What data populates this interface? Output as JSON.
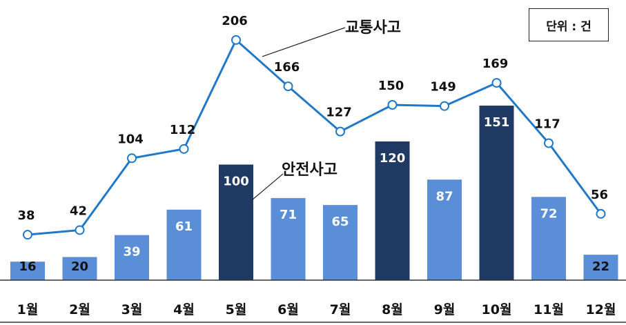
{
  "unit_label": "단위 : 건",
  "chart_data": {
    "type": "bar+line",
    "categories": [
      "1월",
      "2월",
      "3월",
      "4월",
      "5월",
      "6월",
      "7월",
      "8월",
      "9월",
      "10월",
      "11월",
      "12월"
    ],
    "series": [
      {
        "name": "안전사고",
        "type": "bar",
        "values": [
          16,
          20,
          39,
          61,
          100,
          71,
          65,
          120,
          87,
          151,
          72,
          22
        ],
        "highlight_months": [
          "5월",
          "8월",
          "10월"
        ]
      },
      {
        "name": "교통사고",
        "type": "line",
        "values": [
          38,
          42,
          104,
          112,
          206,
          166,
          127,
          150,
          149,
          169,
          117,
          56
        ]
      }
    ],
    "colors": {
      "bar": "#5a8fd8",
      "bar_highlight": "#1f3a63",
      "line": "#1f78c8",
      "marker_fill": "#ffffff"
    },
    "grid": false
  }
}
